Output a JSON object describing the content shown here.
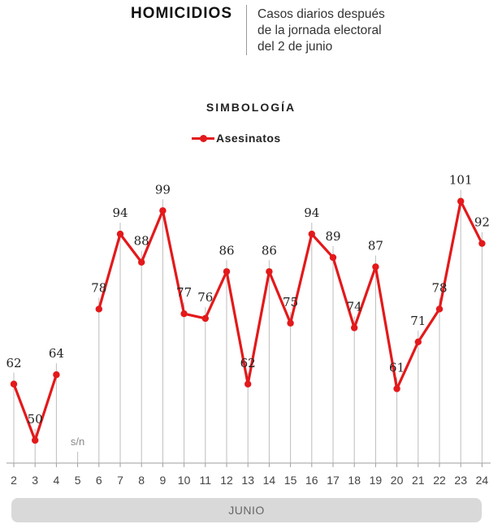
{
  "header": {
    "title": "HOMICIDIOS",
    "subtitle_lines": [
      "Casos diarios después",
      "de la jornada electoral",
      "del 2 de junio"
    ]
  },
  "legend": {
    "title": "SIMBOLOGÍA",
    "series_label": "Asesinatos"
  },
  "colors": {
    "series": "#e3191b",
    "stem": "#bdbdbd",
    "axis": "#9e9e9e",
    "text": "#222222",
    "muted": "#888888",
    "month_bar": "#d9d9d9"
  },
  "chart_data": {
    "type": "line",
    "title": "HOMICIDIOS",
    "subtitle": "Casos diarios después de la jornada electoral del 2 de junio",
    "xlabel": "JUNIO",
    "ylabel": "",
    "categories": [
      "2",
      "3",
      "4",
      "5",
      "6",
      "7",
      "8",
      "9",
      "10",
      "11",
      "12",
      "13",
      "14",
      "15",
      "16",
      "17",
      "18",
      "19",
      "20",
      "21",
      "22",
      "23",
      "24"
    ],
    "series": [
      {
        "name": "Asesinatos",
        "values": [
          62,
          50,
          64,
          null,
          78,
          94,
          88,
          99,
          77,
          76,
          86,
          62,
          86,
          75,
          94,
          89,
          74,
          87,
          61,
          71,
          78,
          101,
          92
        ]
      }
    ],
    "missing_label": "s/n",
    "ylim": [
      0,
      110
    ],
    "grid": false
  },
  "month": {
    "label": "JUNIO"
  }
}
